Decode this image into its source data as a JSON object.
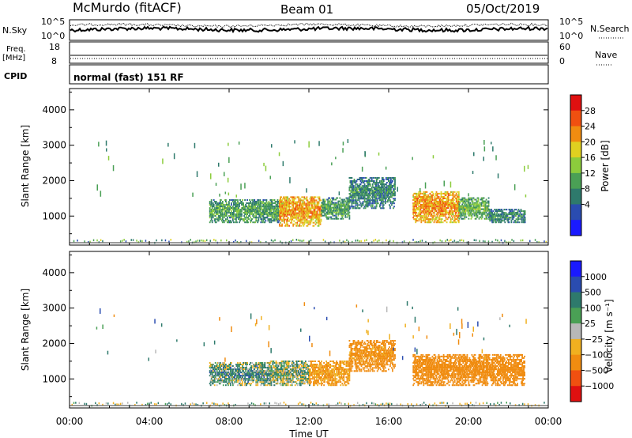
{
  "header": {
    "station": "McMurdo (fitACF)",
    "beam": "Beam 01",
    "date": "05/Oct/2019"
  },
  "noise_panel": {
    "left_label": "N.Sky",
    "left_ticks": [
      "10^5",
      "10^0"
    ],
    "right_ticks": [
      "10^5",
      "10^0"
    ],
    "right_label": "N.Search"
  },
  "freq_panel": {
    "left_label_1": "Freq.",
    "left_label_2": "[MHz]",
    "left_ticks": [
      "18",
      "8"
    ],
    "right_ticks": [
      "60",
      "0"
    ],
    "right_label": "Nave"
  },
  "cpid_panel": {
    "label": "CPID",
    "text": "normal (fast) 151 RF"
  },
  "power_panel": {
    "ylabel": "Slant Range [km]",
    "yticks": [
      "4000",
      "3000",
      "2000",
      "1000"
    ],
    "colorbar_label": "Power [dB]",
    "colorbar_ticks": [
      "28",
      "24",
      "20",
      "16",
      "12",
      "8",
      "4"
    ],
    "colors": [
      "#1a1aff",
      "#2a4cb0",
      "#2e7a6c",
      "#4aa055",
      "#8ccc3c",
      "#e0d020",
      "#f08c10",
      "#f05010",
      "#e01010"
    ]
  },
  "velocity_panel": {
    "ylabel": "Slant Range [km]",
    "yticks": [
      "4000",
      "3000",
      "2000",
      "1000"
    ],
    "colorbar_label": "Velocity [m s⁻¹]",
    "colorbar_ticks": [
      "1000",
      "500",
      "100",
      "25",
      "−25",
      "−100",
      "−500",
      "−1000"
    ],
    "colors": [
      "#1a1aff",
      "#2a4cb0",
      "#2e7a6c",
      "#4aa055",
      "#b8b8b8",
      "#f0b020",
      "#f08c10",
      "#f05010",
      "#e01010"
    ]
  },
  "xaxis": {
    "ticks": [
      "00:00",
      "04:00",
      "08:00",
      "12:00",
      "16:00",
      "20:00",
      "00:00"
    ],
    "label": "Time UT"
  },
  "chart_data": {
    "type": "heatmap",
    "x_range_hours": [
      0,
      24
    ],
    "y_range_km": [
      180,
      4600
    ],
    "power_echo_regions": [
      {
        "t_start": 7.0,
        "t_end": 10.5,
        "range_km": [
          800,
          1450
        ],
        "level_db": 12
      },
      {
        "t_start": 10.5,
        "t_end": 12.6,
        "range_km": [
          700,
          1550
        ],
        "level_db": 24
      },
      {
        "t_start": 12.6,
        "t_end": 14.0,
        "range_km": [
          900,
          1500
        ],
        "level_db": 12
      },
      {
        "t_start": 14.0,
        "t_end": 16.3,
        "range_km": [
          1200,
          2100
        ],
        "level_db": 10
      },
      {
        "t_start": 17.2,
        "t_end": 19.5,
        "range_km": [
          800,
          1700
        ],
        "level_db": 24
      },
      {
        "t_start": 19.5,
        "t_end": 21.0,
        "range_km": [
          900,
          1500
        ],
        "level_db": 14
      },
      {
        "t_start": 21.0,
        "t_end": 22.8,
        "range_km": [
          800,
          1200
        ],
        "level_db": 10
      }
    ],
    "velocity_echo_regions": [
      {
        "t_start": 7.0,
        "t_end": 10.0,
        "range_km": [
          800,
          1450
        ],
        "velocity": 50
      },
      {
        "t_start": 10.0,
        "t_end": 12.0,
        "range_km": [
          800,
          1500
        ],
        "velocity": 25
      },
      {
        "t_start": 12.0,
        "t_end": 14.0,
        "range_km": [
          800,
          1500
        ],
        "velocity": -100
      },
      {
        "t_start": 14.0,
        "t_end": 16.3,
        "range_km": [
          1200,
          2100
        ],
        "velocity": -150
      },
      {
        "t_start": 17.2,
        "t_end": 19.5,
        "range_km": [
          800,
          1700
        ],
        "velocity": -200
      },
      {
        "t_start": 19.5,
        "t_end": 22.8,
        "range_km": [
          800,
          1700
        ],
        "velocity": -200
      }
    ]
  }
}
